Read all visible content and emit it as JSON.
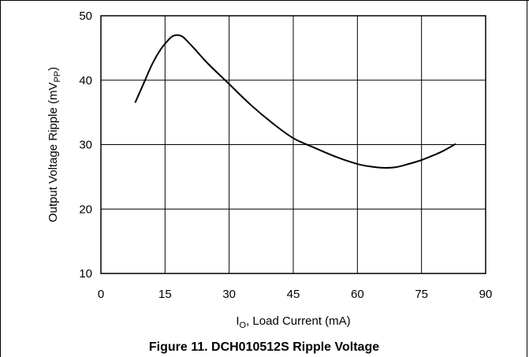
{
  "chart_data": {
    "type": "line",
    "title": "Figure 11. DCH010512S Ripple Voltage",
    "xlabel": {
      "main": "I",
      "sub": "O",
      "rest": ", Load Current (mA)"
    },
    "ylabel": {
      "main": "Output Voltage Ripple (mV",
      "sub": "PP",
      "rest": ")"
    },
    "xlim": [
      0,
      90
    ],
    "ylim": [
      10,
      50
    ],
    "xticks": [
      0,
      15,
      30,
      45,
      60,
      75,
      90
    ],
    "yticks": [
      10,
      20,
      30,
      40,
      50
    ],
    "grid": true,
    "series": [
      {
        "color": "#000000",
        "x": [
          8,
          10,
          12,
          14,
          16,
          17,
          18,
          19,
          20,
          22,
          25,
          30,
          35,
          40,
          45,
          50,
          55,
          60,
          63,
          66,
          69,
          72,
          75,
          78,
          80,
          83
        ],
        "y": [
          36.5,
          39.5,
          42.5,
          44.8,
          46.4,
          46.9,
          47.0,
          46.8,
          46.2,
          44.8,
          42.6,
          39.4,
          36.2,
          33.4,
          31.0,
          29.5,
          28.1,
          27.0,
          26.6,
          26.4,
          26.5,
          27.0,
          27.6,
          28.4,
          29.0,
          30.1
        ]
      }
    ]
  }
}
